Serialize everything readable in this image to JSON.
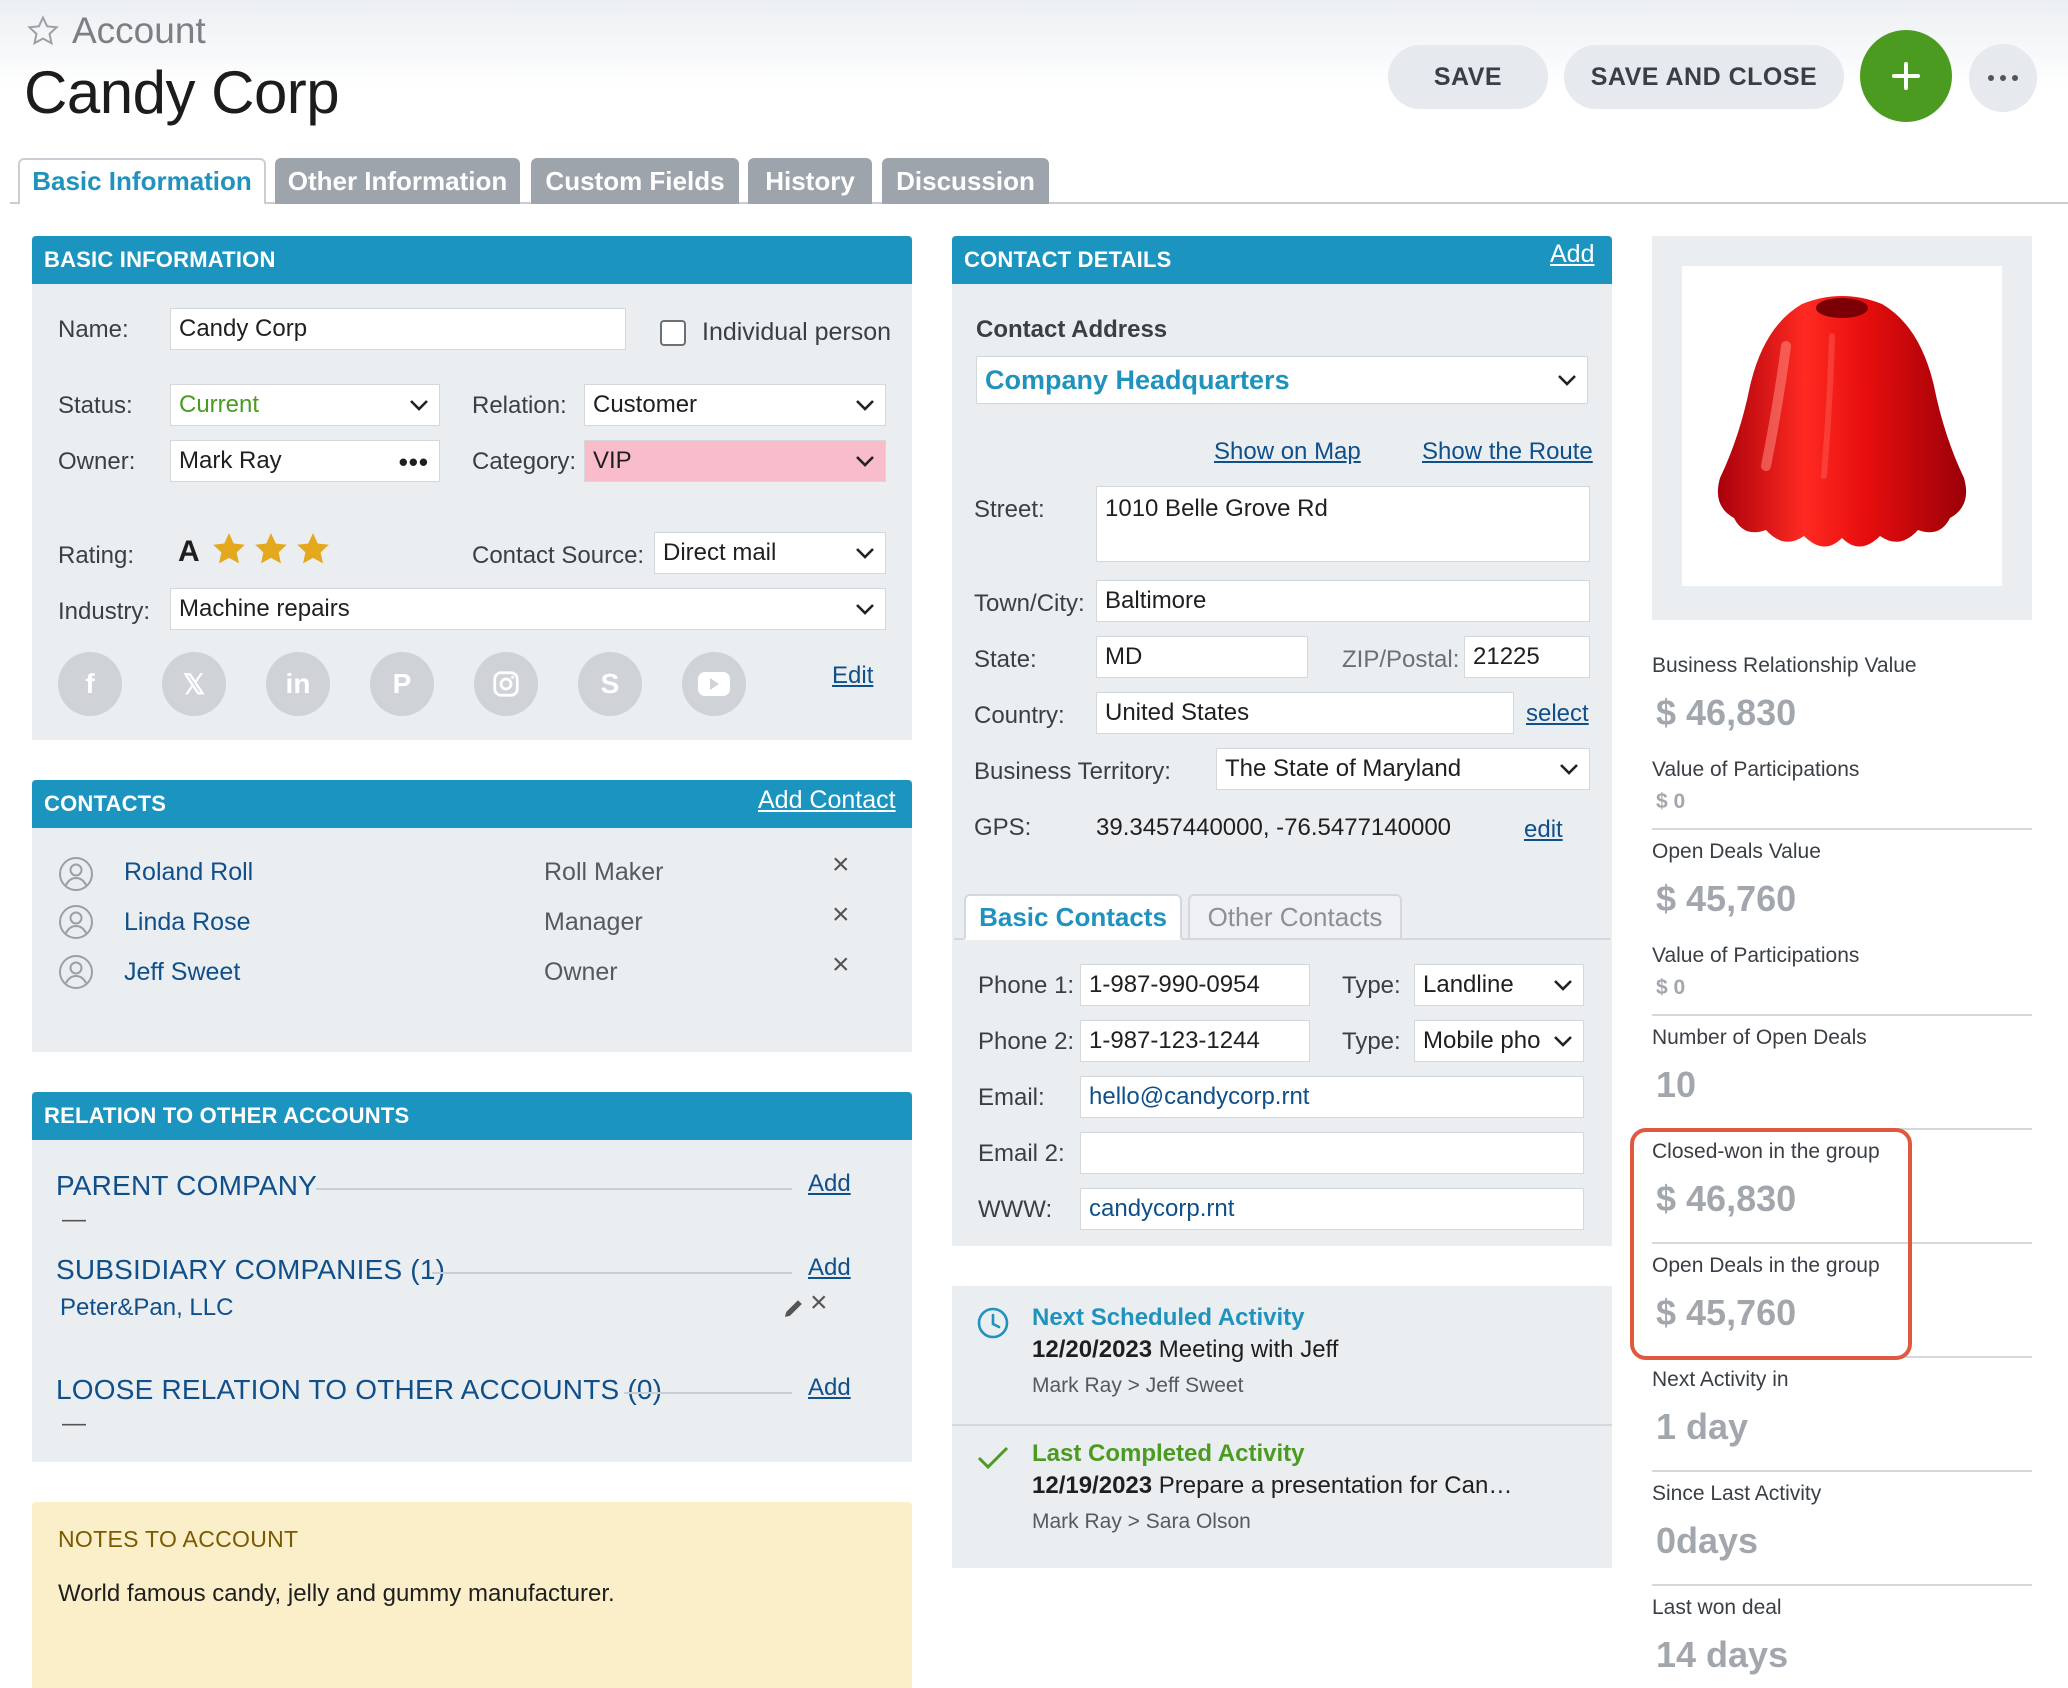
{
  "header": {
    "breadcrumb": "Account",
    "title": "Candy Corp",
    "save_label": "SAVE",
    "save_close_label": "SAVE AND CLOSE",
    "add_icon": "plus-icon",
    "more_icon": "more-dots-icon"
  },
  "tabs": [
    {
      "label": "Basic Information",
      "active": true
    },
    {
      "label": "Other Information"
    },
    {
      "label": "Custom Fields"
    },
    {
      "label": "History"
    },
    {
      "label": "Discussion"
    }
  ],
  "basic": {
    "header": "BASIC INFORMATION",
    "name_label": "Name:",
    "name_value": "Candy Corp",
    "individual_label": "Individual person",
    "status_label": "Status:",
    "status_value": "Current",
    "relation_label": "Relation:",
    "relation_value": "Customer",
    "owner_label": "Owner:",
    "owner_value": "Mark Ray",
    "category_label": "Category:",
    "category_value": "VIP",
    "rating_label": "Rating:",
    "rating_value": "A",
    "rating_stars": 3,
    "contact_source_label": "Contact Source:",
    "contact_source_value": "Direct mail",
    "industry_label": "Industry:",
    "industry_value": "Machine repairs",
    "edit_label": "Edit",
    "social": [
      "facebook-icon",
      "x-icon",
      "linkedin-icon",
      "pinterest-icon",
      "instagram-icon",
      "skype-icon",
      "youtube-icon"
    ],
    "colors": {
      "status": "#4a9b20",
      "category_bg": "#f9bccb"
    }
  },
  "contacts": {
    "header": "CONTACTS",
    "add_label": "Add Contact",
    "rows": [
      {
        "name": "Roland Roll",
        "role": "Roll Maker"
      },
      {
        "name": "Linda Rose",
        "role": "Manager"
      },
      {
        "name": "Jeff Sweet",
        "role": "Owner"
      }
    ]
  },
  "relations": {
    "header": "RELATION TO OTHER ACCOUNTS",
    "parent_title": "PARENT COMPANY",
    "parent_value": "—",
    "subsidiary_title": "SUBSIDIARY COMPANIES (1)",
    "subsidiary_value": "Peter&Pan, LLC",
    "loose_title": "LOOSE RELATION TO OTHER ACCOUNTS (0)",
    "loose_value": "—",
    "add_label": "Add"
  },
  "notes": {
    "header": "NOTES TO ACCOUNT",
    "text": "World famous candy, jelly and gummy manufacturer."
  },
  "contact_details": {
    "header": "CONTACT DETAILS",
    "add_label": "Add",
    "address_label": "Contact Address",
    "address_value": "Company Headquarters",
    "show_map": "Show on Map",
    "show_route": "Show the Route",
    "street_label": "Street:",
    "street_value": "1010 Belle Grove Rd",
    "city_label": "Town/City:",
    "city_value": "Baltimore",
    "state_label": "State:",
    "state_value": "MD",
    "zip_label": "ZIP/Postal:",
    "zip_value": "21225",
    "country_label": "Country:",
    "country_value": "United States",
    "select_label": "select",
    "territory_label": "Business Territory:",
    "territory_value": "The State of Maryland",
    "gps_label": "GPS:",
    "gps_value": "39.3457440000, -76.5477140000",
    "gps_edit": "edit",
    "subtab_basic": "Basic Contacts",
    "subtab_other": "Other Contacts",
    "phone1_label": "Phone 1:",
    "phone1_value": "1-987-990-0954",
    "phone2_label": "Phone 2:",
    "phone2_value": "1-987-123-1244",
    "type_label": "Type:",
    "type1_value": "Landline",
    "type2_value": "Mobile pho",
    "email_label": "Email:",
    "email_value": "hello@candycorp.rnt",
    "email2_label": "Email 2:",
    "email2_value": "",
    "www_label": "WWW:",
    "www_value": "candycorp.rnt"
  },
  "activities": {
    "next_title": "Next Scheduled Activity",
    "next_date": "12/20/2023",
    "next_text": "Meeting with Jeff",
    "next_people": "Mark Ray > Jeff Sweet",
    "last_title": "Last Completed Activity",
    "last_date": "12/19/2023",
    "last_text": "Prepare a presentation for Can…",
    "last_people": "Mark Ray > Sara Olson"
  },
  "stats": {
    "brv_label": "Business Relationship Value",
    "brv_value": "$ 46,830",
    "vop1_label": "Value of Participations",
    "vop1_value": "$ 0",
    "odv_label": "Open Deals Value",
    "odv_value": "$ 45,760",
    "vop2_label": "Value of Participations",
    "vop2_value": "$ 0",
    "nod_label": "Number of Open Deals",
    "nod_value": "10",
    "cwg_label": "Closed-won in the group",
    "cwg_value": "$ 46,830",
    "odg_label": "Open Deals in the group",
    "odg_value": "$ 45,760",
    "next_label": "Next Activity in",
    "next_value": "1 day",
    "since_label": "Since Last Activity",
    "since_value": "0days",
    "won_label": "Last won deal",
    "won_value": "14 days",
    "highlight_color": "#e0593f"
  }
}
